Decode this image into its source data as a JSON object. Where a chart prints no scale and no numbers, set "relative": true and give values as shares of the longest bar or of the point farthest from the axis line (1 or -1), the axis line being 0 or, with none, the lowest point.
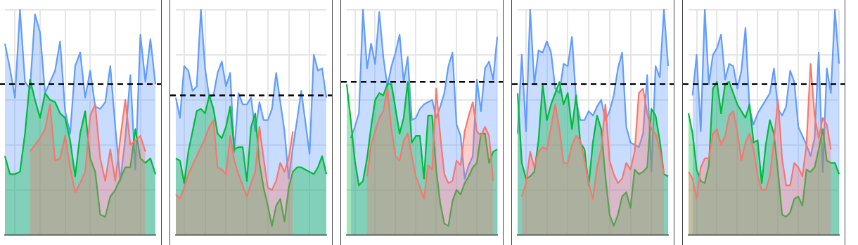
{
  "chart_data": [
    {
      "type": "area",
      "relative": true,
      "grid": true,
      "legend": false,
      "categories": [
        null,
        null,
        null,
        null,
        null,
        null,
        null,
        null,
        null,
        null,
        null,
        null,
        null,
        null,
        null,
        null,
        null,
        null,
        null,
        null,
        null,
        null,
        null,
        null,
        null,
        null,
        null,
        null,
        null,
        null,
        null
      ],
      "ref_lines": [
        {
          "axis": "y",
          "value": 0.67,
          "color": "#000000",
          "line_style": "dashed"
        }
      ],
      "series": [
        {
          "color": "#f8766d",
          "values": [
            null,
            null,
            null,
            null,
            null,
            0.37,
            0.4,
            0.43,
            0.47,
            0.58,
            0.33,
            0.34,
            0.44,
            0.3,
            0.19,
            0.23,
            0.28,
            0.53,
            0.58,
            0.34,
            0.24,
            0.38,
            0.24,
            0.43,
            0.6,
            0.4,
            0.42,
            0.44,
            0.37,
            null,
            null
          ]
        },
        {
          "color": "#00ba38",
          "values": [
            0.35,
            0.27,
            0.27,
            0.28,
            0.45,
            0.69,
            0.6,
            0.52,
            0.63,
            0.6,
            0.59,
            0.54,
            0.52,
            0.42,
            0.26,
            0.45,
            0.55,
            0.34,
            0.28,
            0.09,
            0.08,
            0.17,
            0.2,
            0.25,
            0.3,
            0.3,
            0.47,
            0.34,
            0.32,
            0.34,
            0.27
          ]
        },
        {
          "color": "#619cff",
          "values": [
            0.85,
            0.74,
            0.61,
            1.0,
            0.68,
            0.65,
            0.98,
            0.9,
            0.63,
            0.68,
            0.73,
            0.86,
            0.55,
            0.45,
            0.75,
            0.81,
            0.61,
            0.73,
            0.57,
            0.56,
            0.59,
            0.75,
            0.48,
            0.24,
            0.43,
            0.71,
            0.29,
            0.89,
            0.68,
            0.87,
            0.67
          ]
        }
      ]
    },
    {
      "type": "area",
      "relative": true,
      "grid": true,
      "legend": false,
      "categories": [
        null,
        null,
        null,
        null,
        null,
        null,
        null,
        null,
        null,
        null,
        null,
        null,
        null,
        null,
        null,
        null,
        null,
        null,
        null,
        null,
        null,
        null,
        null,
        null,
        null,
        null,
        null,
        null,
        null,
        null,
        null,
        null,
        null,
        null,
        null,
        null,
        null
      ],
      "ref_lines": [
        {
          "axis": "y",
          "value": 0.62,
          "color": "#000000",
          "line_style": "dashed"
        }
      ],
      "series": [
        {
          "color": "#f8766d",
          "values": [
            0.18,
            0.16,
            0.21,
            0.27,
            0.31,
            0.35,
            0.39,
            0.43,
            0.48,
            0.51,
            0.3,
            0.29,
            0.27,
            0.44,
            0.33,
            0.27,
            0.22,
            0.17,
            0.23,
            0.28,
            0.48,
            0.34,
            0.21,
            0.2,
            0.24,
            0.32,
            0.28,
            0.34,
            0.46,
            null,
            null,
            null,
            null,
            null,
            null,
            null,
            null
          ]
        },
        {
          "color": "#00ba38",
          "values": [
            0.34,
            0.33,
            0.23,
            0.37,
            0.46,
            0.55,
            0.56,
            0.54,
            0.62,
            0.56,
            0.45,
            0.43,
            0.48,
            0.57,
            0.38,
            0.39,
            0.39,
            0.24,
            0.48,
            0.54,
            0.32,
            0.21,
            0.13,
            0.04,
            0.13,
            0.16,
            0.06,
            0.21,
            0.28,
            0.3,
            0.3,
            0.29,
            0.28,
            0.27,
            0.3,
            0.35,
            0.27
          ]
        },
        {
          "color": "#619cff",
          "values": [
            0.61,
            0.52,
            0.75,
            0.73,
            0.64,
            0.66,
            1.0,
            0.74,
            0.61,
            0.62,
            0.72,
            0.77,
            0.66,
            0.72,
            0.37,
            0.63,
            0.58,
            0.58,
            0.61,
            0.46,
            0.59,
            0.51,
            0.51,
            0.56,
            0.72,
            0.59,
            0.46,
            0.25,
            0.39,
            0.51,
            0.64,
            0.5,
            0.36,
            0.8,
            0.73,
            0.74,
            0.61
          ]
        }
      ]
    },
    {
      "type": "area",
      "relative": true,
      "grid": true,
      "legend": false,
      "categories": [
        null,
        null,
        null,
        null,
        null,
        null,
        null,
        null,
        null,
        null,
        null,
        null,
        null,
        null,
        null,
        null,
        null,
        null,
        null,
        null,
        null,
        null,
        null,
        null,
        null,
        null,
        null,
        null,
        null,
        null,
        null,
        null,
        null,
        null,
        null,
        null,
        null,
        null
      ],
      "ref_lines": [
        {
          "axis": "y",
          "value": 0.68,
          "color": "#000000",
          "line_style": "dashed"
        }
      ],
      "series": [
        {
          "color": "#f8766d",
          "values": [
            null,
            null,
            null,
            null,
            null,
            0.26,
            0.4,
            0.46,
            0.52,
            0.55,
            0.65,
            0.47,
            0.35,
            0.33,
            0.42,
            0.45,
            0.35,
            0.26,
            0.21,
            0.16,
            0.31,
            0.29,
            0.65,
            0.44,
            0.27,
            0.23,
            0.24,
            0.33,
            0.31,
            0.46,
            0.53,
            0.59,
            0.46,
            0.44,
            0.48,
            0.44,
            0.24,
            null
          ]
        },
        {
          "color": "#00ba38",
          "values": [
            0.67,
            0.51,
            0.33,
            0.22,
            0.24,
            0.34,
            0.48,
            0.6,
            0.63,
            0.62,
            0.67,
            0.67,
            0.56,
            0.45,
            0.52,
            0.68,
            0.41,
            0.44,
            0.44,
            0.25,
            0.53,
            0.53,
            0.29,
            0.14,
            0.05,
            0.04,
            0.15,
            0.2,
            0.18,
            0.23,
            0.26,
            0.3,
            0.32,
            0.45,
            0.45,
            0.32,
            0.37,
            0.38
          ]
        },
        {
          "color": "#619cff",
          "values": [
            null,
            0.43,
            0.48,
            0.54,
            1.0,
            0.74,
            0.85,
            0.76,
            0.99,
            0.79,
            0.66,
            0.75,
            0.81,
            0.89,
            0.68,
            0.79,
            0.51,
            0.52,
            0.56,
            0.58,
            0.59,
            0.6,
            0.52,
            0.57,
            0.63,
            0.75,
            0.81,
            0.49,
            0.44,
            0.25,
            0.31,
            0.35,
            0.69,
            0.55,
            0.74,
            0.77,
            0.69,
            0.88
          ]
        }
      ]
    },
    {
      "type": "area",
      "relative": true,
      "grid": true,
      "legend": false,
      "categories": [
        null,
        null,
        null,
        null,
        null,
        null,
        null,
        null,
        null,
        null,
        null,
        null,
        null,
        null,
        null,
        null,
        null,
        null,
        null,
        null,
        null,
        null,
        null,
        null,
        null,
        null,
        null,
        null,
        null,
        null,
        null,
        null,
        null,
        null,
        null,
        null,
        null
      ],
      "ref_lines": [
        {
          "axis": "y",
          "value": 0.67,
          "color": "#000000",
          "line_style": "dashed"
        }
      ],
      "series": [
        {
          "color": "#f8766d",
          "values": [
            null,
            0.17,
            0.23,
            0.37,
            0.3,
            0.37,
            0.39,
            0.38,
            0.48,
            0.58,
            0.47,
            0.32,
            0.32,
            0.4,
            0.44,
            0.42,
            0.33,
            0.23,
            0.16,
            0.3,
            0.38,
            0.58,
            0.33,
            0.27,
            0.23,
            0.25,
            0.32,
            0.29,
            0.37,
            0.63,
            0.65,
            0.54,
            0.47,
            0.45,
            0.38,
            0.27,
            null
          ]
        },
        {
          "color": "#00ba38",
          "values": [
            0.63,
            0.32,
            0.25,
            0.26,
            0.28,
            0.42,
            0.67,
            0.51,
            0.58,
            0.63,
            0.68,
            0.58,
            0.63,
            0.47,
            0.62,
            0.41,
            0.38,
            0.22,
            0.41,
            0.53,
            0.47,
            0.26,
            0.09,
            0.04,
            0.09,
            0.17,
            0.19,
            0.12,
            0.29,
            0.27,
            0.28,
            0.3,
            0.56,
            0.53,
            0.42,
            0.27,
            0.26
          ]
        },
        {
          "color": "#619cff",
          "values": [
            0.45,
            0.8,
            0.46,
            1.0,
            0.67,
            0.82,
            0.81,
            0.86,
            0.81,
            0.65,
            0.63,
            0.76,
            0.75,
            0.88,
            0.6,
            0.51,
            0.51,
            0.55,
            0.53,
            0.57,
            0.6,
            0.51,
            0.55,
            0.62,
            0.74,
            0.81,
            0.48,
            0.41,
            0.4,
            0.39,
            0.45,
            0.71,
            0.28,
            0.75,
            0.7,
            1.0,
            0.75
          ]
        }
      ]
    },
    {
      "type": "area",
      "relative": true,
      "grid": true,
      "legend": false,
      "categories": [
        null,
        null,
        null,
        null,
        null,
        null,
        null,
        null,
        null,
        null,
        null,
        null,
        null,
        null,
        null,
        null,
        null,
        null,
        null,
        null,
        null,
        null,
        null,
        null,
        null,
        null,
        null,
        null,
        null,
        null,
        null,
        null,
        null,
        null,
        null,
        null,
        null,
        null
      ],
      "ref_lines": [
        {
          "axis": "y",
          "value": 0.67,
          "color": "#000000",
          "line_style": "dashed"
        }
      ],
      "series": [
        {
          "color": "#f8766d",
          "values": [
            0.28,
            0.25,
            0.16,
            0.3,
            0.34,
            0.34,
            0.45,
            0.47,
            0.4,
            0.44,
            0.53,
            0.55,
            0.46,
            0.33,
            0.41,
            0.45,
            0.38,
            0.26,
            0.2,
            0.2,
            0.26,
            0.42,
            0.6,
            0.34,
            0.22,
            0.22,
            0.32,
            0.3,
            0.26,
            0.4,
            0.76,
            0.53,
            0.43,
            0.52,
            0.49,
            0.38,
            null,
            null
          ]
        },
        {
          "color": "#00ba38",
          "values": [
            0.54,
            0.45,
            0.29,
            0.24,
            0.23,
            0.31,
            0.65,
            0.68,
            0.54,
            0.67,
            0.68,
            0.63,
            0.58,
            0.55,
            0.52,
            0.58,
            0.41,
            0.42,
            0.23,
            0.4,
            0.51,
            0.45,
            0.28,
            0.09,
            0.08,
            0.1,
            0.16,
            0.17,
            0.13,
            0.29,
            0.28,
            0.3,
            0.38,
            0.47,
            0.33,
            0.32,
            0.32,
            0.27
          ]
        },
        {
          "color": "#619cff",
          "values": [
            null,
            0.62,
            0.8,
            0.46,
            1.0,
            0.67,
            0.8,
            0.83,
            0.89,
            0.69,
            0.76,
            0.75,
            0.65,
            0.73,
            0.92,
            0.56,
            0.49,
            0.54,
            0.57,
            0.6,
            0.63,
            0.74,
            0.56,
            0.53,
            0.57,
            0.73,
            0.68,
            0.48,
            0.44,
            0.4,
            0.35,
            0.43,
            0.81,
            0.28,
            0.74,
            0.63,
            1.0,
            0.76
          ]
        }
      ]
    }
  ]
}
